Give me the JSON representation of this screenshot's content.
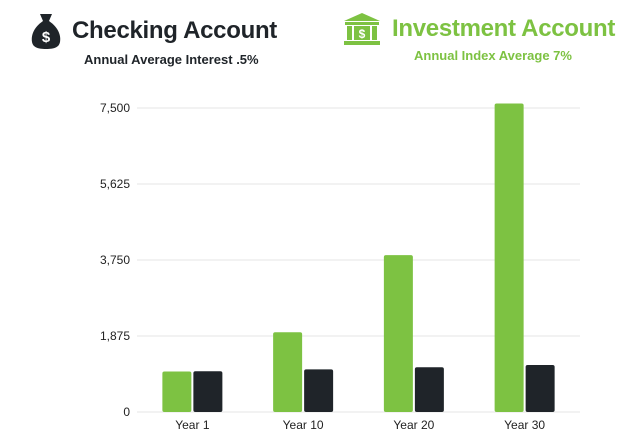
{
  "legend": {
    "checking": {
      "title": "Checking Account",
      "subtitle": "Annual Average Interest .5%",
      "icon": "money-bag-icon",
      "color": "#1f2429"
    },
    "investment": {
      "title": "Investment Account",
      "subtitle": "Annual Index Average 7%",
      "icon": "bank-icon",
      "color": "#7dc242"
    }
  },
  "chart_data": {
    "type": "bar",
    "categories": [
      "Year 1",
      "Year 10",
      "Year 20",
      "Year 30"
    ],
    "series": [
      {
        "name": "Investment Account",
        "color": "#7dc242",
        "values": [
          1000,
          1967,
          3870,
          7612
        ]
      },
      {
        "name": "Checking Account",
        "color": "#1f2429",
        "values": [
          1005,
          1051,
          1105,
          1161
        ]
      }
    ],
    "yticks": [
      "0",
      "1,875",
      "3,750",
      "5,625",
      "7,500"
    ],
    "ytick_values": [
      0,
      1875,
      3750,
      5625,
      7500
    ],
    "ylim": [
      0,
      7500
    ],
    "grid": true,
    "legend_position": "top",
    "title": "",
    "xlabel": "",
    "ylabel": ""
  }
}
